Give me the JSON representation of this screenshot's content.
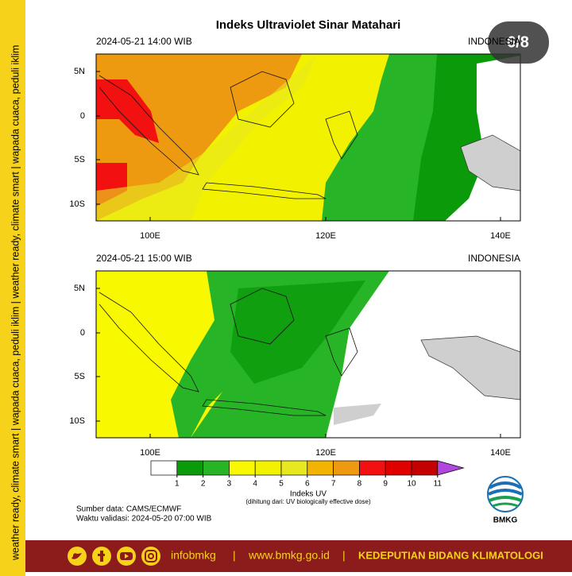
{
  "title": "Indeks Ultraviolet Sinar Matahari",
  "badge": "6/8",
  "side_text": "weather ready, climate smart | wapada cuaca, peduli iklim | weather ready, climate smart | wapada cuaca, peduli iklim",
  "maps": [
    {
      "time": "2024-05-21  14:00 WIB",
      "region": "INDONESIA",
      "lat_labels": [
        "5N",
        "0",
        "5S",
        "10S"
      ],
      "lon_labels": [
        "100E",
        "120E",
        "140E"
      ]
    },
    {
      "time": "2024-05-21  15:00 WIB",
      "region": "INDONESIA",
      "lat_labels": [
        "5N",
        "0",
        "5S",
        "10S"
      ],
      "lon_labels": [
        "100E",
        "120E",
        "140E"
      ]
    }
  ],
  "colorbar": {
    "ticks": [
      1,
      2,
      3,
      4,
      5,
      6,
      7,
      8,
      9,
      10,
      11
    ],
    "colors": [
      "#ffffff",
      "#0a9a0a",
      "#27b527",
      "#f8f800",
      "#f2f200",
      "#e8e820",
      "#f2b400",
      "#ee9a10",
      "#f21010",
      "#e00000",
      "#c40000",
      "#b048e0"
    ],
    "label": "Indeks UV",
    "note": "(dihitung dari: UV biologically effective dose)"
  },
  "source": "Sumber data: CAMS/ECMWF",
  "validity": "Waktu validasi: 2024-05-20 07:00 WIB",
  "logo": "BMKG",
  "footer": {
    "social": "infobmkg",
    "separator": "|",
    "website": "www.bmkg.go.id",
    "department": "KEDEPUTIAN BIDANG KLIMATOLOGI"
  }
}
